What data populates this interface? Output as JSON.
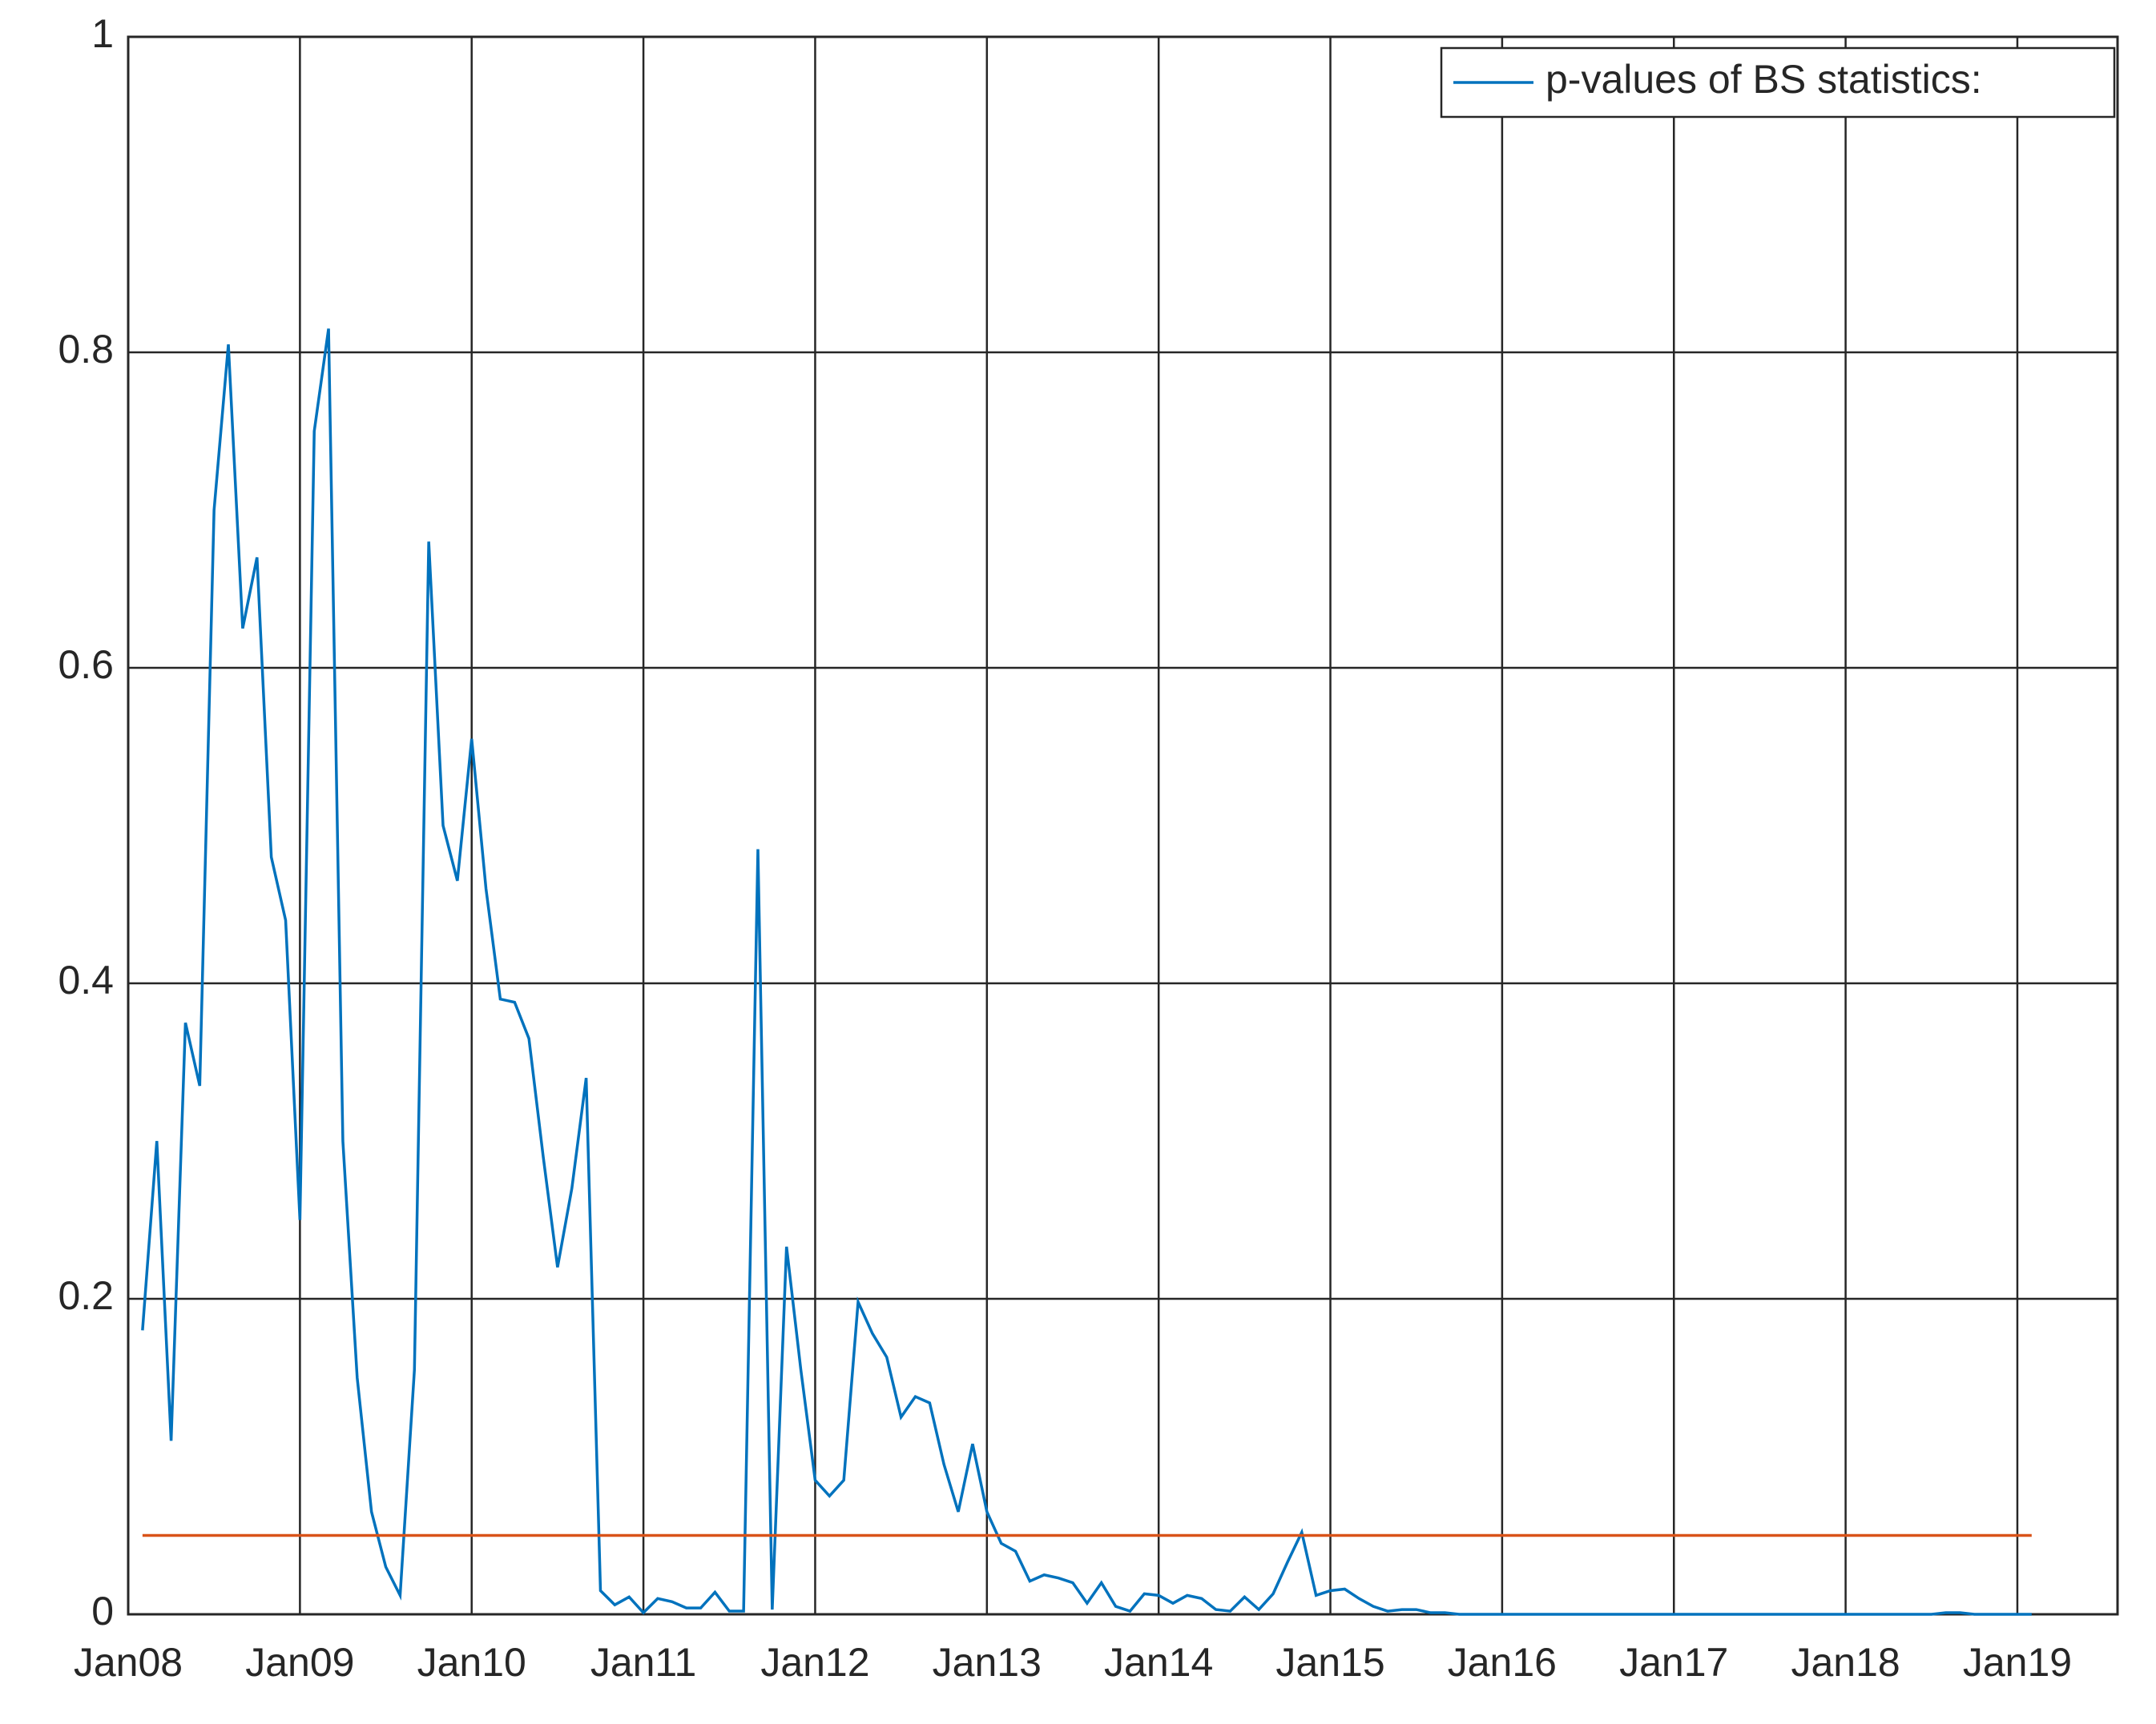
{
  "chart_data": {
    "type": "line",
    "x": [
      "2008-02",
      "2008-03",
      "2008-04",
      "2008-05",
      "2008-06",
      "2008-07",
      "2008-08",
      "2008-09",
      "2008-10",
      "2008-11",
      "2008-12",
      "2009-01",
      "2009-02",
      "2009-03",
      "2009-04",
      "2009-05",
      "2009-06",
      "2009-07",
      "2009-08",
      "2009-09",
      "2009-10",
      "2009-11",
      "2009-12",
      "2010-01",
      "2010-02",
      "2010-03",
      "2010-04",
      "2010-05",
      "2010-06",
      "2010-07",
      "2010-08",
      "2010-09",
      "2010-10",
      "2010-11",
      "2010-12",
      "2011-01",
      "2011-02",
      "2011-03",
      "2011-04",
      "2011-05",
      "2011-06",
      "2011-07",
      "2011-08",
      "2011-09",
      "2011-10",
      "2011-11",
      "2011-12",
      "2012-01",
      "2012-02",
      "2012-03",
      "2012-04",
      "2012-05",
      "2012-06",
      "2012-07",
      "2012-08",
      "2012-09",
      "2012-10",
      "2012-11",
      "2012-12",
      "2013-01",
      "2013-02",
      "2013-03",
      "2013-04",
      "2013-05",
      "2013-06",
      "2013-07",
      "2013-08",
      "2013-09",
      "2013-10",
      "2013-11",
      "2013-12",
      "2014-01",
      "2014-02",
      "2014-03",
      "2014-04",
      "2014-05",
      "2014-06",
      "2014-07",
      "2014-08",
      "2014-09",
      "2014-10",
      "2014-11",
      "2014-12",
      "2015-01",
      "2015-02",
      "2015-03",
      "2015-04",
      "2015-05",
      "2015-06",
      "2015-07",
      "2015-08",
      "2015-09",
      "2015-10",
      "2015-11",
      "2015-12",
      "2016-01",
      "2016-02",
      "2016-03",
      "2016-04",
      "2016-05",
      "2016-06",
      "2016-07",
      "2016-08",
      "2016-09",
      "2016-10",
      "2016-11",
      "2016-12",
      "2017-01",
      "2017-02",
      "2017-03",
      "2017-04",
      "2017-05",
      "2017-06",
      "2017-07",
      "2017-08",
      "2017-09",
      "2017-10",
      "2017-11",
      "2017-12",
      "2018-01",
      "2018-02",
      "2018-03",
      "2018-04",
      "2018-05",
      "2018-06",
      "2018-07",
      "2018-08",
      "2018-09",
      "2018-10",
      "2018-11",
      "2018-12",
      "2019-01",
      "2019-02"
    ],
    "series": [
      {
        "name": "p-values of BS statistics:",
        "color": "#0072bd",
        "values": [
          0.18,
          0.3,
          0.11,
          0.375,
          0.335,
          0.7,
          0.805,
          0.625,
          0.67,
          0.48,
          0.44,
          0.25,
          0.75,
          0.815,
          0.3,
          0.15,
          0.065,
          0.03,
          0.012,
          0.155,
          0.68,
          0.5,
          0.465,
          0.555,
          0.46,
          0.39,
          0.388,
          0.365,
          0.29,
          0.22,
          0.27,
          0.34,
          0.015,
          0.006,
          0.011,
          0.001,
          0.01,
          0.008,
          0.004,
          0.004,
          0.014,
          0.002,
          0.002,
          0.485,
          0.003,
          0.233,
          0.155,
          0.085,
          0.075,
          0.085,
          0.198,
          0.178,
          0.163,
          0.125,
          0.138,
          0.134,
          0.095,
          0.065,
          0.108,
          0.065,
          0.045,
          0.04,
          0.021,
          0.025,
          0.023,
          0.02,
          0.007,
          0.02,
          0.005,
          0.002,
          0.013,
          0.012,
          0.007,
          0.012,
          0.01,
          0.003,
          0.002,
          0.011,
          0.003,
          0.013,
          0.033,
          0.052,
          0.012,
          0.015,
          0.016,
          0.01,
          0.005,
          0.002,
          0.003,
          0.003,
          0.001,
          0.001,
          0,
          0,
          0,
          0,
          0,
          0,
          0,
          0,
          0,
          0,
          0,
          0,
          0,
          0,
          0,
          0,
          0,
          0,
          0,
          0,
          0,
          0,
          0,
          0,
          0,
          0,
          0,
          0,
          0,
          0,
          0,
          0,
          0,
          0,
          0.001,
          0.001,
          0,
          0,
          0,
          0,
          0
        ]
      },
      {
        "color": "#d95319",
        "x": [
          "2008-02",
          "2019-02"
        ],
        "values": [
          0.05,
          0.05
        ]
      }
    ],
    "xlim": [
      "2008-01",
      "2019-08"
    ],
    "xticks": [
      {
        "value": "2008-01",
        "label": "Jan08"
      },
      {
        "value": "2009-01",
        "label": "Jan09"
      },
      {
        "value": "2010-01",
        "label": "Jan10"
      },
      {
        "value": "2011-01",
        "label": "Jan11"
      },
      {
        "value": "2012-01",
        "label": "Jan12"
      },
      {
        "value": "2013-01",
        "label": "Jan13"
      },
      {
        "value": "2014-01",
        "label": "Jan14"
      },
      {
        "value": "2015-01",
        "label": "Jan15"
      },
      {
        "value": "2016-01",
        "label": "Jan16"
      },
      {
        "value": "2017-01",
        "label": "Jan17"
      },
      {
        "value": "2018-01",
        "label": "Jan18"
      },
      {
        "value": "2019-01",
        "label": "Jan19"
      }
    ],
    "ylim": [
      0,
      1
    ],
    "yticks": [
      0,
      0.2,
      0.4,
      0.6,
      0.8,
      1
    ],
    "grid": true,
    "legend": "top-right"
  }
}
